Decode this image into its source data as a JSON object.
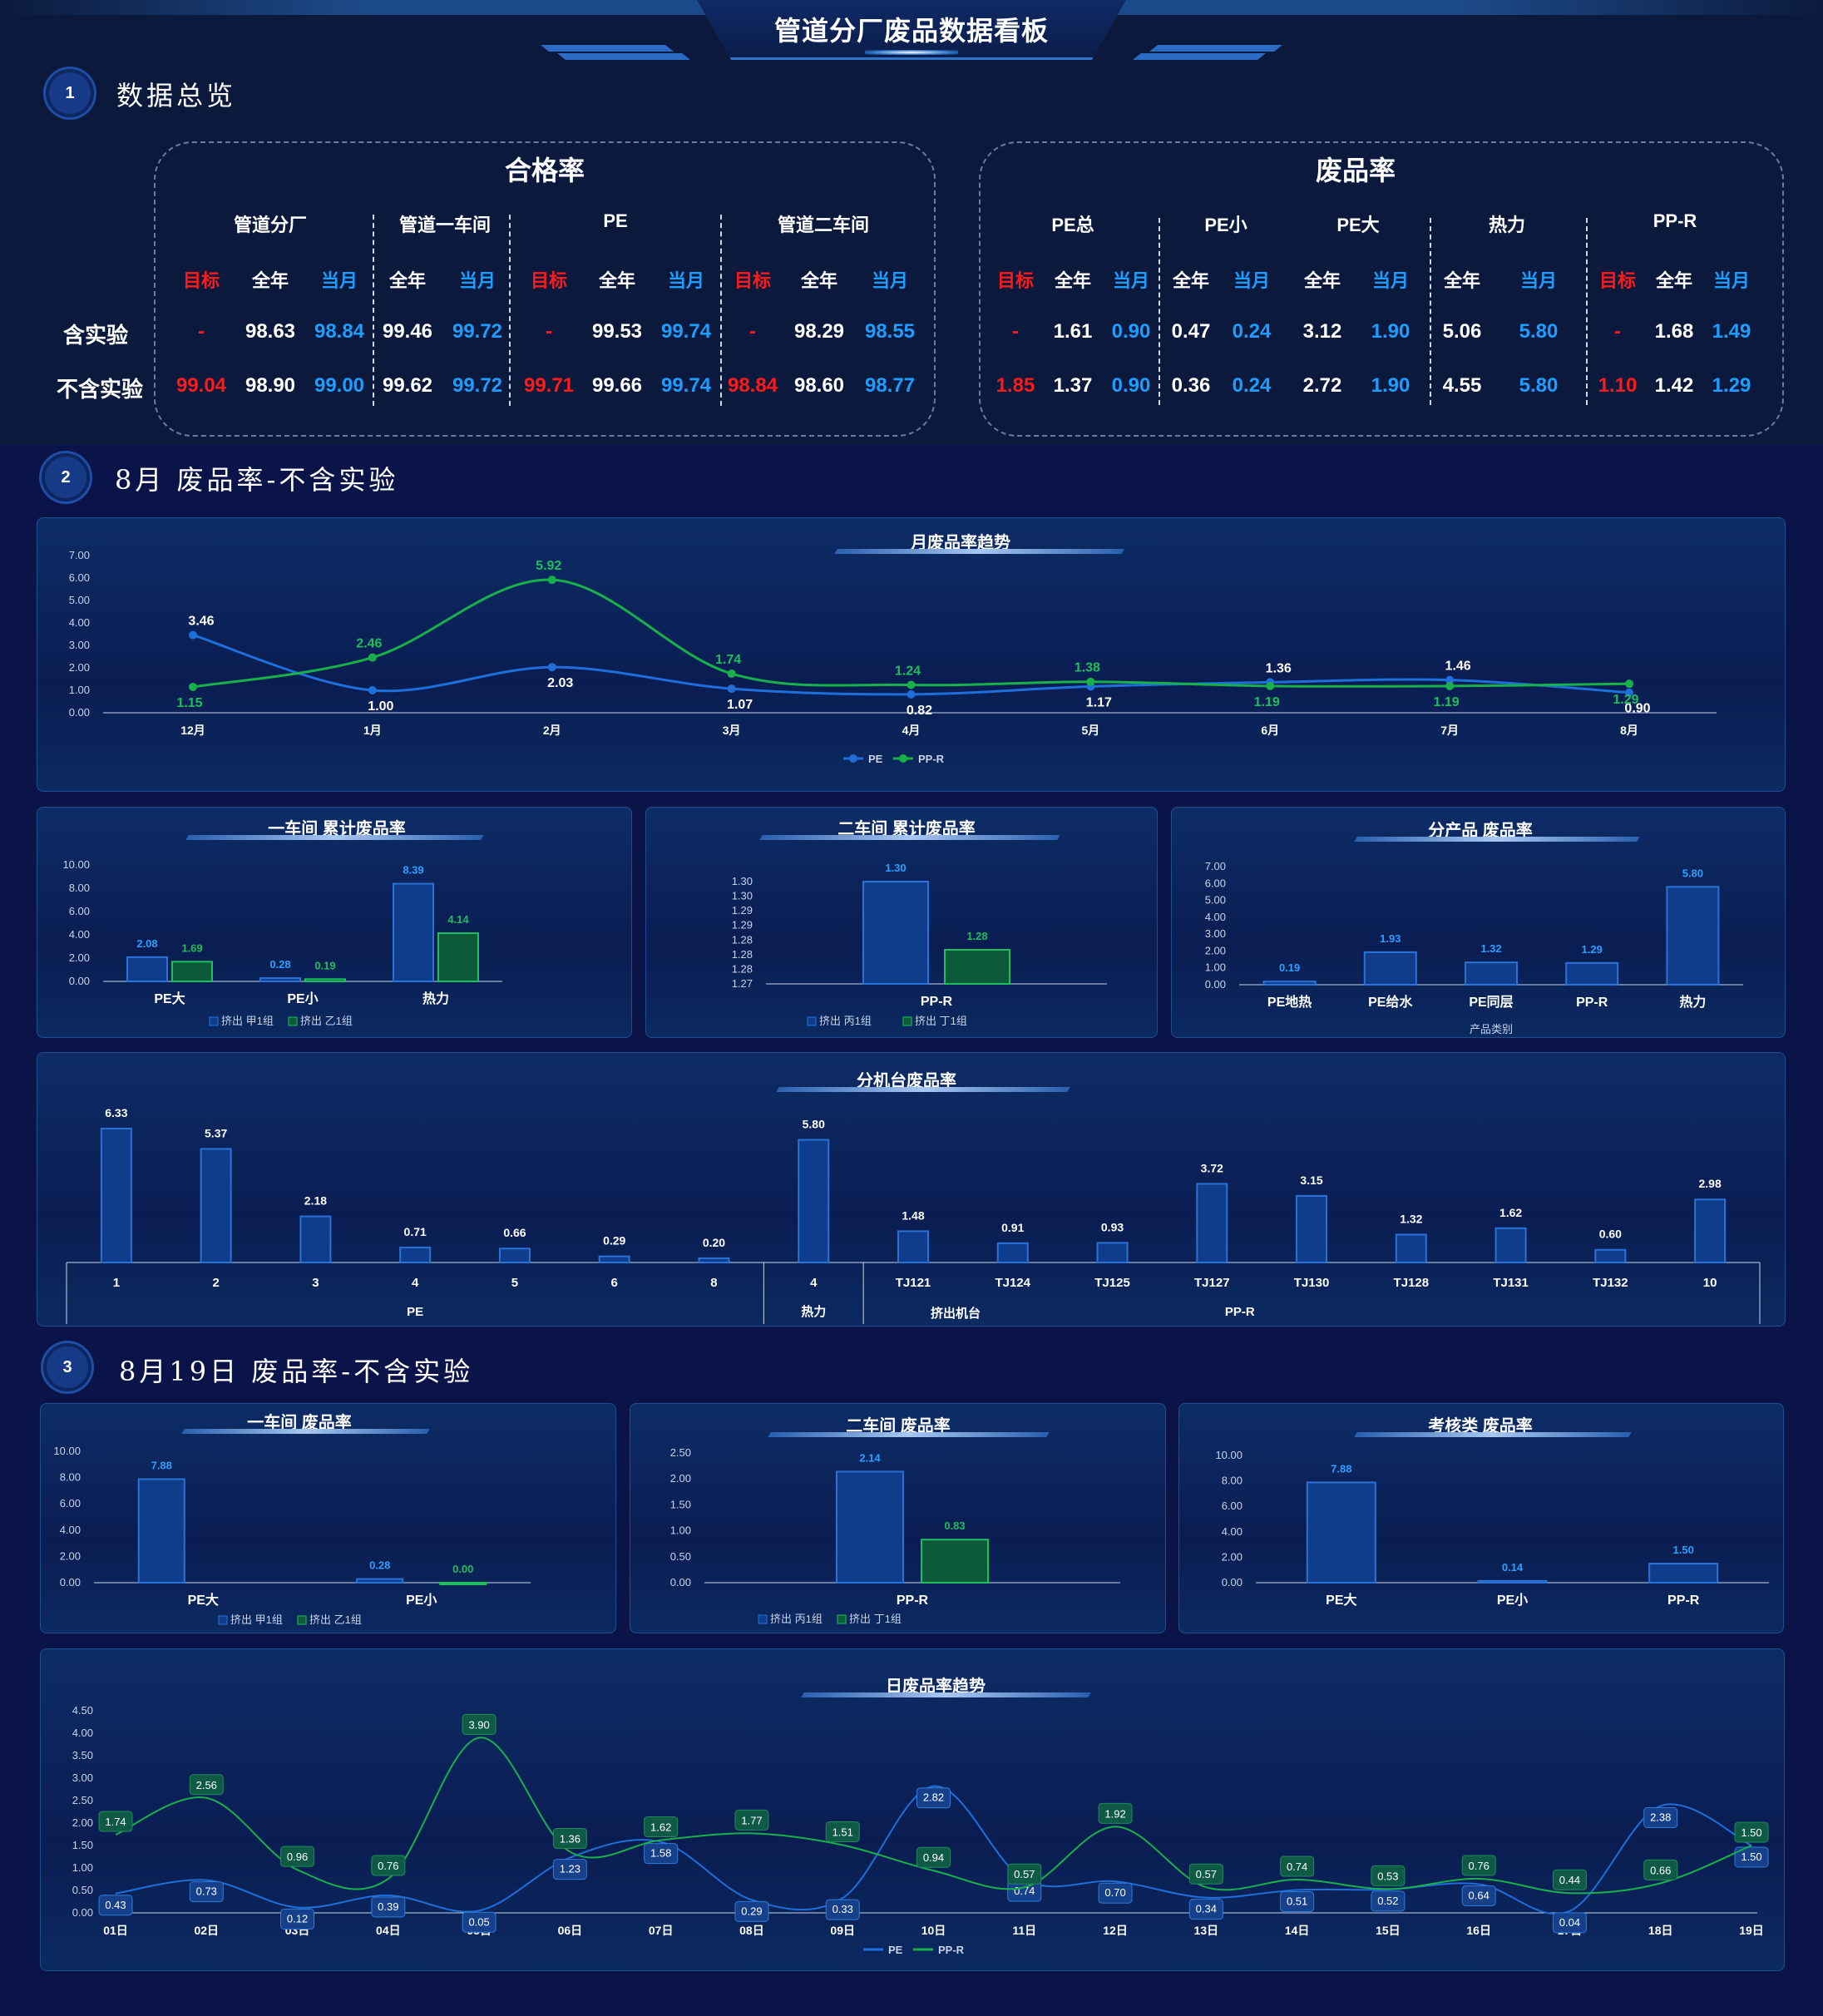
{
  "header": {
    "title": "管道分厂废品数据看板"
  },
  "sections": {
    "s1": {
      "num": "1",
      "title": "数据总览"
    },
    "s2": {
      "num": "2",
      "title": "8月 废品率-不含实验"
    },
    "s3": {
      "num": "3",
      "title": "8月19日 废品率-不含实验"
    }
  },
  "overview": {
    "pass": {
      "title": "合格率",
      "groups": [
        "管道分厂",
        "管道一车间",
        "PE",
        "管道二车间"
      ],
      "subheaders": [
        "目标",
        "全年",
        "当月",
        "全年",
        "当月",
        "目标",
        "全年",
        "当月",
        "目标",
        "全年",
        "当月"
      ],
      "rows": [
        {
          "label": "含实验",
          "values": [
            "-",
            "98.63",
            "98.84",
            "99.46",
            "99.72",
            "-",
            "99.53",
            "99.74",
            "-",
            "98.29",
            "98.55"
          ]
        },
        {
          "label": "不含实验",
          "values": [
            "99.04",
            "98.90",
            "99.00",
            "99.62",
            "99.72",
            "99.71",
            "99.66",
            "99.74",
            "98.84",
            "98.60",
            "98.77"
          ]
        }
      ]
    },
    "scrap": {
      "title": "废品率",
      "groups": [
        "PE总",
        "PE小",
        "PE大",
        "热力",
        "PP-R"
      ],
      "subheaders": [
        "目标",
        "全年",
        "当月",
        "全年",
        "当月",
        "全年",
        "当月",
        "全年",
        "当月",
        "目标",
        "全年",
        "当月"
      ],
      "rows": [
        {
          "values": [
            "-",
            "1.61",
            "0.90",
            "0.47",
            "0.24",
            "3.12",
            "1.90",
            "5.06",
            "5.80",
            "-",
            "1.68",
            "1.49"
          ]
        },
        {
          "values": [
            "1.85",
            "1.37",
            "0.90",
            "0.36",
            "0.24",
            "2.72",
            "1.90",
            "4.55",
            "5.80",
            "1.10",
            "1.42",
            "1.29"
          ]
        }
      ]
    }
  },
  "colors": {
    "pe": "#1e6fd9",
    "ppr": "#18b04a",
    "bar_blue": "#0f3d8c",
    "bar_green": "#0d5a3a",
    "accent_blue": "#1e9cff",
    "red": "#ff1a1a"
  },
  "monthly_trend": {
    "title": "月废品率趋势",
    "legend": [
      "PE",
      "PP-R"
    ]
  },
  "ws1_cum": {
    "title": "一车间 累计废品率",
    "legend": [
      "挤出 甲1组",
      "挤出 乙1组"
    ]
  },
  "ws2_cum": {
    "title": "二车间 累计废品率",
    "legend": [
      "挤出 丙1组",
      "挤出 丁1组"
    ]
  },
  "by_product": {
    "title": "分产品 废品率",
    "xlabel": "产品类别"
  },
  "machines": {
    "title": "分机台废品率",
    "group_labels": [
      "PE",
      "热力",
      "PP-R"
    ],
    "xlabel": "挤出机台"
  },
  "day_ws1": {
    "title": "一车间 废品率",
    "legend": [
      "挤出 甲1组",
      "挤出 乙1组"
    ]
  },
  "day_ws2": {
    "title": "二车间 废品率",
    "legend": [
      "挤出 丙1组",
      "挤出 丁1组"
    ]
  },
  "day_exam": {
    "title": "考核类 废品率"
  },
  "daily_trend": {
    "title": "日废品率趋势",
    "legend": [
      "PE",
      "PP-R"
    ]
  },
  "chart_data": [
    {
      "type": "line",
      "id": "monthly",
      "title": "月废品率趋势",
      "categories": [
        "12月",
        "1月",
        "2月",
        "3月",
        "4月",
        "5月",
        "6月",
        "7月",
        "8月"
      ],
      "series": [
        {
          "name": "PE",
          "values": [
            3.46,
            1.0,
            2.03,
            1.07,
            0.82,
            1.17,
            1.36,
            1.46,
            0.9
          ]
        },
        {
          "name": "PP-R",
          "values": [
            1.15,
            2.46,
            5.92,
            1.74,
            1.24,
            1.38,
            1.19,
            1.19,
            1.29
          ]
        }
      ],
      "yticks": [
        "0.00",
        "1.00",
        "2.00",
        "3.00",
        "4.00",
        "5.00",
        "6.00",
        "7.00"
      ],
      "ylim": [
        0,
        7
      ]
    },
    {
      "type": "bar",
      "id": "ws1cum",
      "title": "一车间 累计废品率",
      "categories": [
        "PE大",
        "PE小",
        "热力"
      ],
      "series": [
        {
          "name": "挤出 甲1组",
          "values": [
            2.08,
            0.28,
            8.39
          ]
        },
        {
          "name": "挤出 乙1组",
          "values": [
            1.69,
            0.19,
            4.14
          ]
        }
      ],
      "yticks": [
        "0.00",
        "2.00",
        "4.00",
        "6.00",
        "8.00",
        "10.00"
      ],
      "ylim": [
        0,
        10
      ]
    },
    {
      "type": "bar",
      "id": "ws2cum",
      "title": "二车间 累计废品率",
      "categories": [
        "PP-R"
      ],
      "series": [
        {
          "name": "挤出 丙1组",
          "values": [
            1.3
          ]
        },
        {
          "name": "挤出 丁1组",
          "values": [
            1.28
          ]
        }
      ],
      "yticks": [
        "1.27",
        "1.28",
        "1.28",
        "1.28",
        "1.29",
        "1.29",
        "1.30",
        "1.30"
      ],
      "ylim": [
        1.27,
        1.3
      ]
    },
    {
      "type": "bar",
      "id": "product",
      "title": "分产品 废品率",
      "categories": [
        "PE地热",
        "PE给水",
        "PE同层",
        "PP-R",
        "热力"
      ],
      "series": [
        {
          "name": "",
          "values": [
            0.19,
            1.93,
            1.32,
            1.29,
            5.8
          ]
        }
      ],
      "yticks": [
        "0.00",
        "1.00",
        "2.00",
        "3.00",
        "4.00",
        "5.00",
        "6.00",
        "7.00"
      ],
      "ylim": [
        0,
        7
      ],
      "xlabel": "产品类别"
    },
    {
      "type": "bar",
      "id": "machines",
      "title": "分机台废品率",
      "categories": [
        "1",
        "2",
        "3",
        "4",
        "5",
        "6",
        "8",
        "4",
        "TJ121",
        "TJ124",
        "TJ125",
        "TJ127",
        "TJ130",
        "TJ128",
        "TJ131",
        "TJ132",
        "10"
      ],
      "groups": [
        {
          "label": "PE",
          "count": 7
        },
        {
          "label": "热力",
          "count": 1
        },
        {
          "label": "PP-R",
          "count": 9
        }
      ],
      "series": [
        {
          "name": "",
          "values": [
            6.33,
            5.37,
            2.18,
            0.71,
            0.66,
            0.29,
            0.2,
            5.8,
            1.48,
            0.91,
            0.93,
            3.72,
            3.15,
            1.32,
            1.62,
            0.6,
            2.98
          ]
        }
      ],
      "ylim": [
        0,
        7
      ]
    },
    {
      "type": "bar",
      "id": "dayws1",
      "title": "一车间 废品率",
      "categories": [
        "PE大",
        "PE小"
      ],
      "series": [
        {
          "name": "挤出 甲1组",
          "values": [
            7.88,
            0.28
          ]
        },
        {
          "name": "挤出 乙1组",
          "values": [
            null,
            0.0
          ]
        }
      ],
      "yticks": [
        "0.00",
        "2.00",
        "4.00",
        "6.00",
        "8.00",
        "10.00"
      ],
      "ylim": [
        0,
        10
      ]
    },
    {
      "type": "bar",
      "id": "dayws2",
      "title": "二车间 废品率",
      "categories": [
        "PP-R"
      ],
      "series": [
        {
          "name": "挤出 丙1组",
          "values": [
            2.14
          ]
        },
        {
          "name": "挤出 丁1组",
          "values": [
            0.83
          ]
        }
      ],
      "yticks": [
        "0.00",
        "0.50",
        "1.00",
        "1.50",
        "2.00",
        "2.50"
      ],
      "ylim": [
        0,
        2.5
      ]
    },
    {
      "type": "bar",
      "id": "dayexam",
      "title": "考核类 废品率",
      "categories": [
        "PE大",
        "PE小",
        "PP-R"
      ],
      "series": [
        {
          "name": "",
          "values": [
            7.88,
            0.14,
            1.5
          ]
        }
      ],
      "yticks": [
        "0.00",
        "2.00",
        "4.00",
        "6.00",
        "8.00",
        "10.00"
      ],
      "ylim": [
        0,
        10
      ]
    },
    {
      "type": "line",
      "id": "daily",
      "title": "日废品率趋势",
      "categories": [
        "01日",
        "02日",
        "03日",
        "04日",
        "05日",
        "06日",
        "07日",
        "08日",
        "09日",
        "10日",
        "11日",
        "12日",
        "13日",
        "14日",
        "15日",
        "16日",
        "17日",
        "18日",
        "19日"
      ],
      "series": [
        {
          "name": "PE",
          "values": [
            0.43,
            0.73,
            0.12,
            0.39,
            0.05,
            1.23,
            1.58,
            0.29,
            0.33,
            2.82,
            0.74,
            0.7,
            0.34,
            0.51,
            0.52,
            0.64,
            0.04,
            2.38,
            1.5
          ]
        },
        {
          "name": "PP-R",
          "values": [
            1.74,
            2.56,
            0.96,
            0.76,
            3.9,
            1.36,
            1.62,
            1.77,
            1.51,
            0.94,
            0.57,
            1.92,
            0.57,
            0.74,
            0.53,
            0.76,
            0.44,
            0.66,
            1.5
          ]
        }
      ],
      "yticks": [
        "0.00",
        "0.50",
        "1.00",
        "1.50",
        "2.00",
        "2.50",
        "3.00",
        "3.50",
        "4.00",
        "4.50"
      ],
      "ylim": [
        0,
        4.5
      ]
    }
  ]
}
